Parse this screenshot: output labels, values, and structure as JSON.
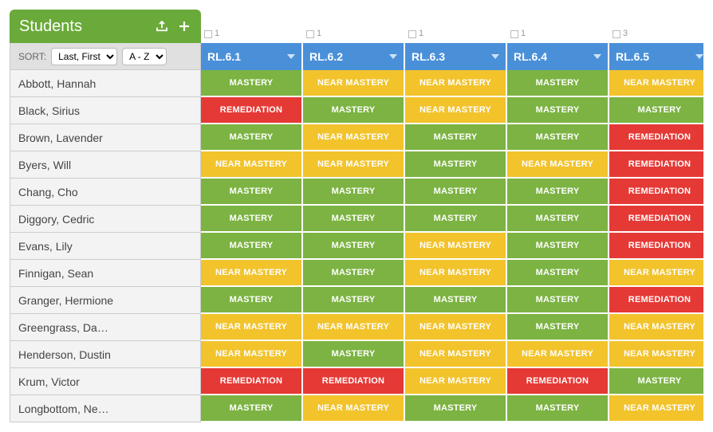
{
  "header": {
    "title": "Students",
    "sort_label": "SORT:",
    "sort_field_options": [
      "Last, First"
    ],
    "sort_order_options": [
      "A - Z"
    ]
  },
  "colors": {
    "header_green": "#6aaa3a",
    "standard_header_blue": "#4a90d9",
    "mastery": "#7cb342",
    "near_mastery": "#f2c32b",
    "remediation": "#e53935",
    "name_row_bg": "#f3f3f3",
    "sort_row_bg": "#e0e0e0",
    "border": "#cccccc"
  },
  "status_labels": {
    "MASTERY": "MASTERY",
    "NEAR": "NEAR MASTERY",
    "REM": "REMEDIATION"
  },
  "standards": [
    {
      "code": "RL.6.1",
      "count_badge": "1"
    },
    {
      "code": "RL.6.2",
      "count_badge": "1"
    },
    {
      "code": "RL.6.3",
      "count_badge": "1"
    },
    {
      "code": "RL.6.4",
      "count_badge": "1"
    },
    {
      "code": "RL.6.5",
      "count_badge": "3"
    }
  ],
  "students": [
    {
      "name": "Abbott, Hannah",
      "scores": [
        "MASTERY",
        "NEAR",
        "NEAR",
        "MASTERY",
        "NEAR"
      ]
    },
    {
      "name": "Black, Sirius",
      "scores": [
        "REM",
        "MASTERY",
        "NEAR",
        "MASTERY",
        "MASTERY"
      ]
    },
    {
      "name": "Brown, Lavender",
      "scores": [
        "MASTERY",
        "NEAR",
        "MASTERY",
        "MASTERY",
        "REM"
      ]
    },
    {
      "name": "Byers, Will",
      "scores": [
        "NEAR",
        "NEAR",
        "MASTERY",
        "NEAR",
        "REM"
      ]
    },
    {
      "name": "Chang, Cho",
      "scores": [
        "MASTERY",
        "MASTERY",
        "MASTERY",
        "MASTERY",
        "REM"
      ]
    },
    {
      "name": "Diggory, Cedric",
      "scores": [
        "MASTERY",
        "MASTERY",
        "MASTERY",
        "MASTERY",
        "REM"
      ]
    },
    {
      "name": "Evans, Lily",
      "scores": [
        "MASTERY",
        "MASTERY",
        "NEAR",
        "MASTERY",
        "REM"
      ]
    },
    {
      "name": "Finnigan, Sean",
      "scores": [
        "NEAR",
        "MASTERY",
        "NEAR",
        "MASTERY",
        "NEAR"
      ]
    },
    {
      "name": "Granger, Hermione",
      "scores": [
        "MASTERY",
        "MASTERY",
        "MASTERY",
        "MASTERY",
        "REM"
      ]
    },
    {
      "name": "Greengrass, Da…",
      "scores": [
        "NEAR",
        "NEAR",
        "NEAR",
        "MASTERY",
        "NEAR"
      ]
    },
    {
      "name": "Henderson, Dustin",
      "scores": [
        "NEAR",
        "MASTERY",
        "NEAR",
        "NEAR",
        "NEAR"
      ]
    },
    {
      "name": "Krum, Victor",
      "scores": [
        "REM",
        "REM",
        "NEAR",
        "REM",
        "MASTERY"
      ]
    },
    {
      "name": "Longbottom, Ne…",
      "scores": [
        "MASTERY",
        "NEAR",
        "MASTERY",
        "MASTERY",
        "NEAR"
      ]
    }
  ]
}
